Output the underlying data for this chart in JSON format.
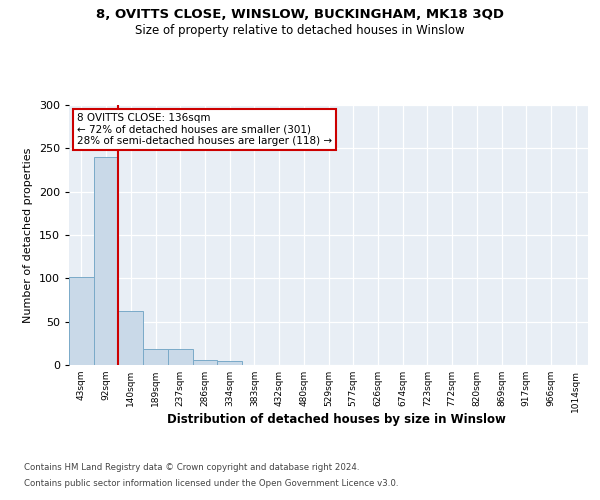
{
  "title1": "8, OVITTS CLOSE, WINSLOW, BUCKINGHAM, MK18 3QD",
  "title2": "Size of property relative to detached houses in Winslow",
  "xlabel": "Distribution of detached houses by size in Winslow",
  "ylabel": "Number of detached properties",
  "footer1": "Contains HM Land Registry data © Crown copyright and database right 2024.",
  "footer2": "Contains public sector information licensed under the Open Government Licence v3.0.",
  "annotation_line1": "8 OVITTS CLOSE: 136sqm",
  "annotation_line2": "← 72% of detached houses are smaller (301)",
  "annotation_line3": "28% of semi-detached houses are larger (118) →",
  "bar_labels": [
    "43sqm",
    "92sqm",
    "140sqm",
    "189sqm",
    "237sqm",
    "286sqm",
    "334sqm",
    "383sqm",
    "432sqm",
    "480sqm",
    "529sqm",
    "577sqm",
    "626sqm",
    "674sqm",
    "723sqm",
    "772sqm",
    "820sqm",
    "869sqm",
    "917sqm",
    "966sqm",
    "1014sqm"
  ],
  "bar_values": [
    101,
    240,
    62,
    18,
    18,
    6,
    5,
    0,
    0,
    0,
    0,
    0,
    0,
    0,
    0,
    0,
    0,
    0,
    0,
    0,
    0
  ],
  "bar_color": "#c9d9e8",
  "bar_edge_color": "#7aaac8",
  "property_line_x": 2,
  "property_line_color": "#cc0000",
  "annotation_box_edge_color": "#cc0000",
  "ylim": [
    0,
    300
  ],
  "yticks": [
    0,
    50,
    100,
    150,
    200,
    250,
    300
  ],
  "plot_bg_color": "#e8eef5"
}
